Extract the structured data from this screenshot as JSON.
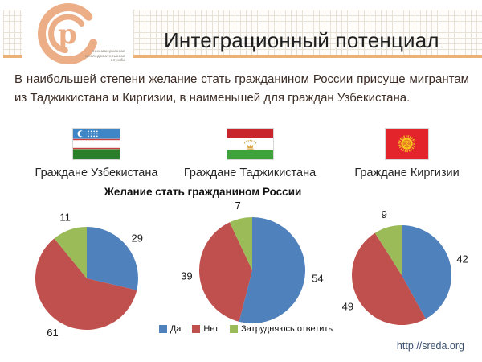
{
  "slide": {
    "logo": {
      "org_name_lines": [
        "некоммерческая",
        "исследовательская",
        "служба"
      ]
    },
    "title": "Интеграционный потенциал",
    "lead": "В наибольшей степени желание стать гражданином России присуще мигрантам из Таджикистана и Киргизии, в наименьшей для граждан Узбекистана.",
    "groups": [
      {
        "id": "uzbekistan",
        "label": "Граждане Узбекистана"
      },
      {
        "id": "tajikistan",
        "label": "Граждане Таджикистана"
      },
      {
        "id": "kyrgyzstan",
        "label": "Граждане Киргизии"
      }
    ],
    "footer_url": "http://sreda.org"
  },
  "chart_data": {
    "type": "pie",
    "title": "Желание стать гражданином России",
    "categories": [
      "Да",
      "Нет",
      "Затрудняюсь ответить"
    ],
    "colors": [
      "#4F81BD",
      "#C0504D",
      "#9BBB59"
    ],
    "legend_position": "bottom-center",
    "label_color": "#1a1a1a",
    "pies": [
      {
        "group": "Граждане Узбекистана",
        "values": [
          29,
          61,
          11
        ]
      },
      {
        "group": "Граждане Таджикистана",
        "values": [
          54,
          39,
          7
        ]
      },
      {
        "group": "Граждане Киргизии",
        "values": [
          42,
          49,
          9
        ]
      }
    ]
  }
}
